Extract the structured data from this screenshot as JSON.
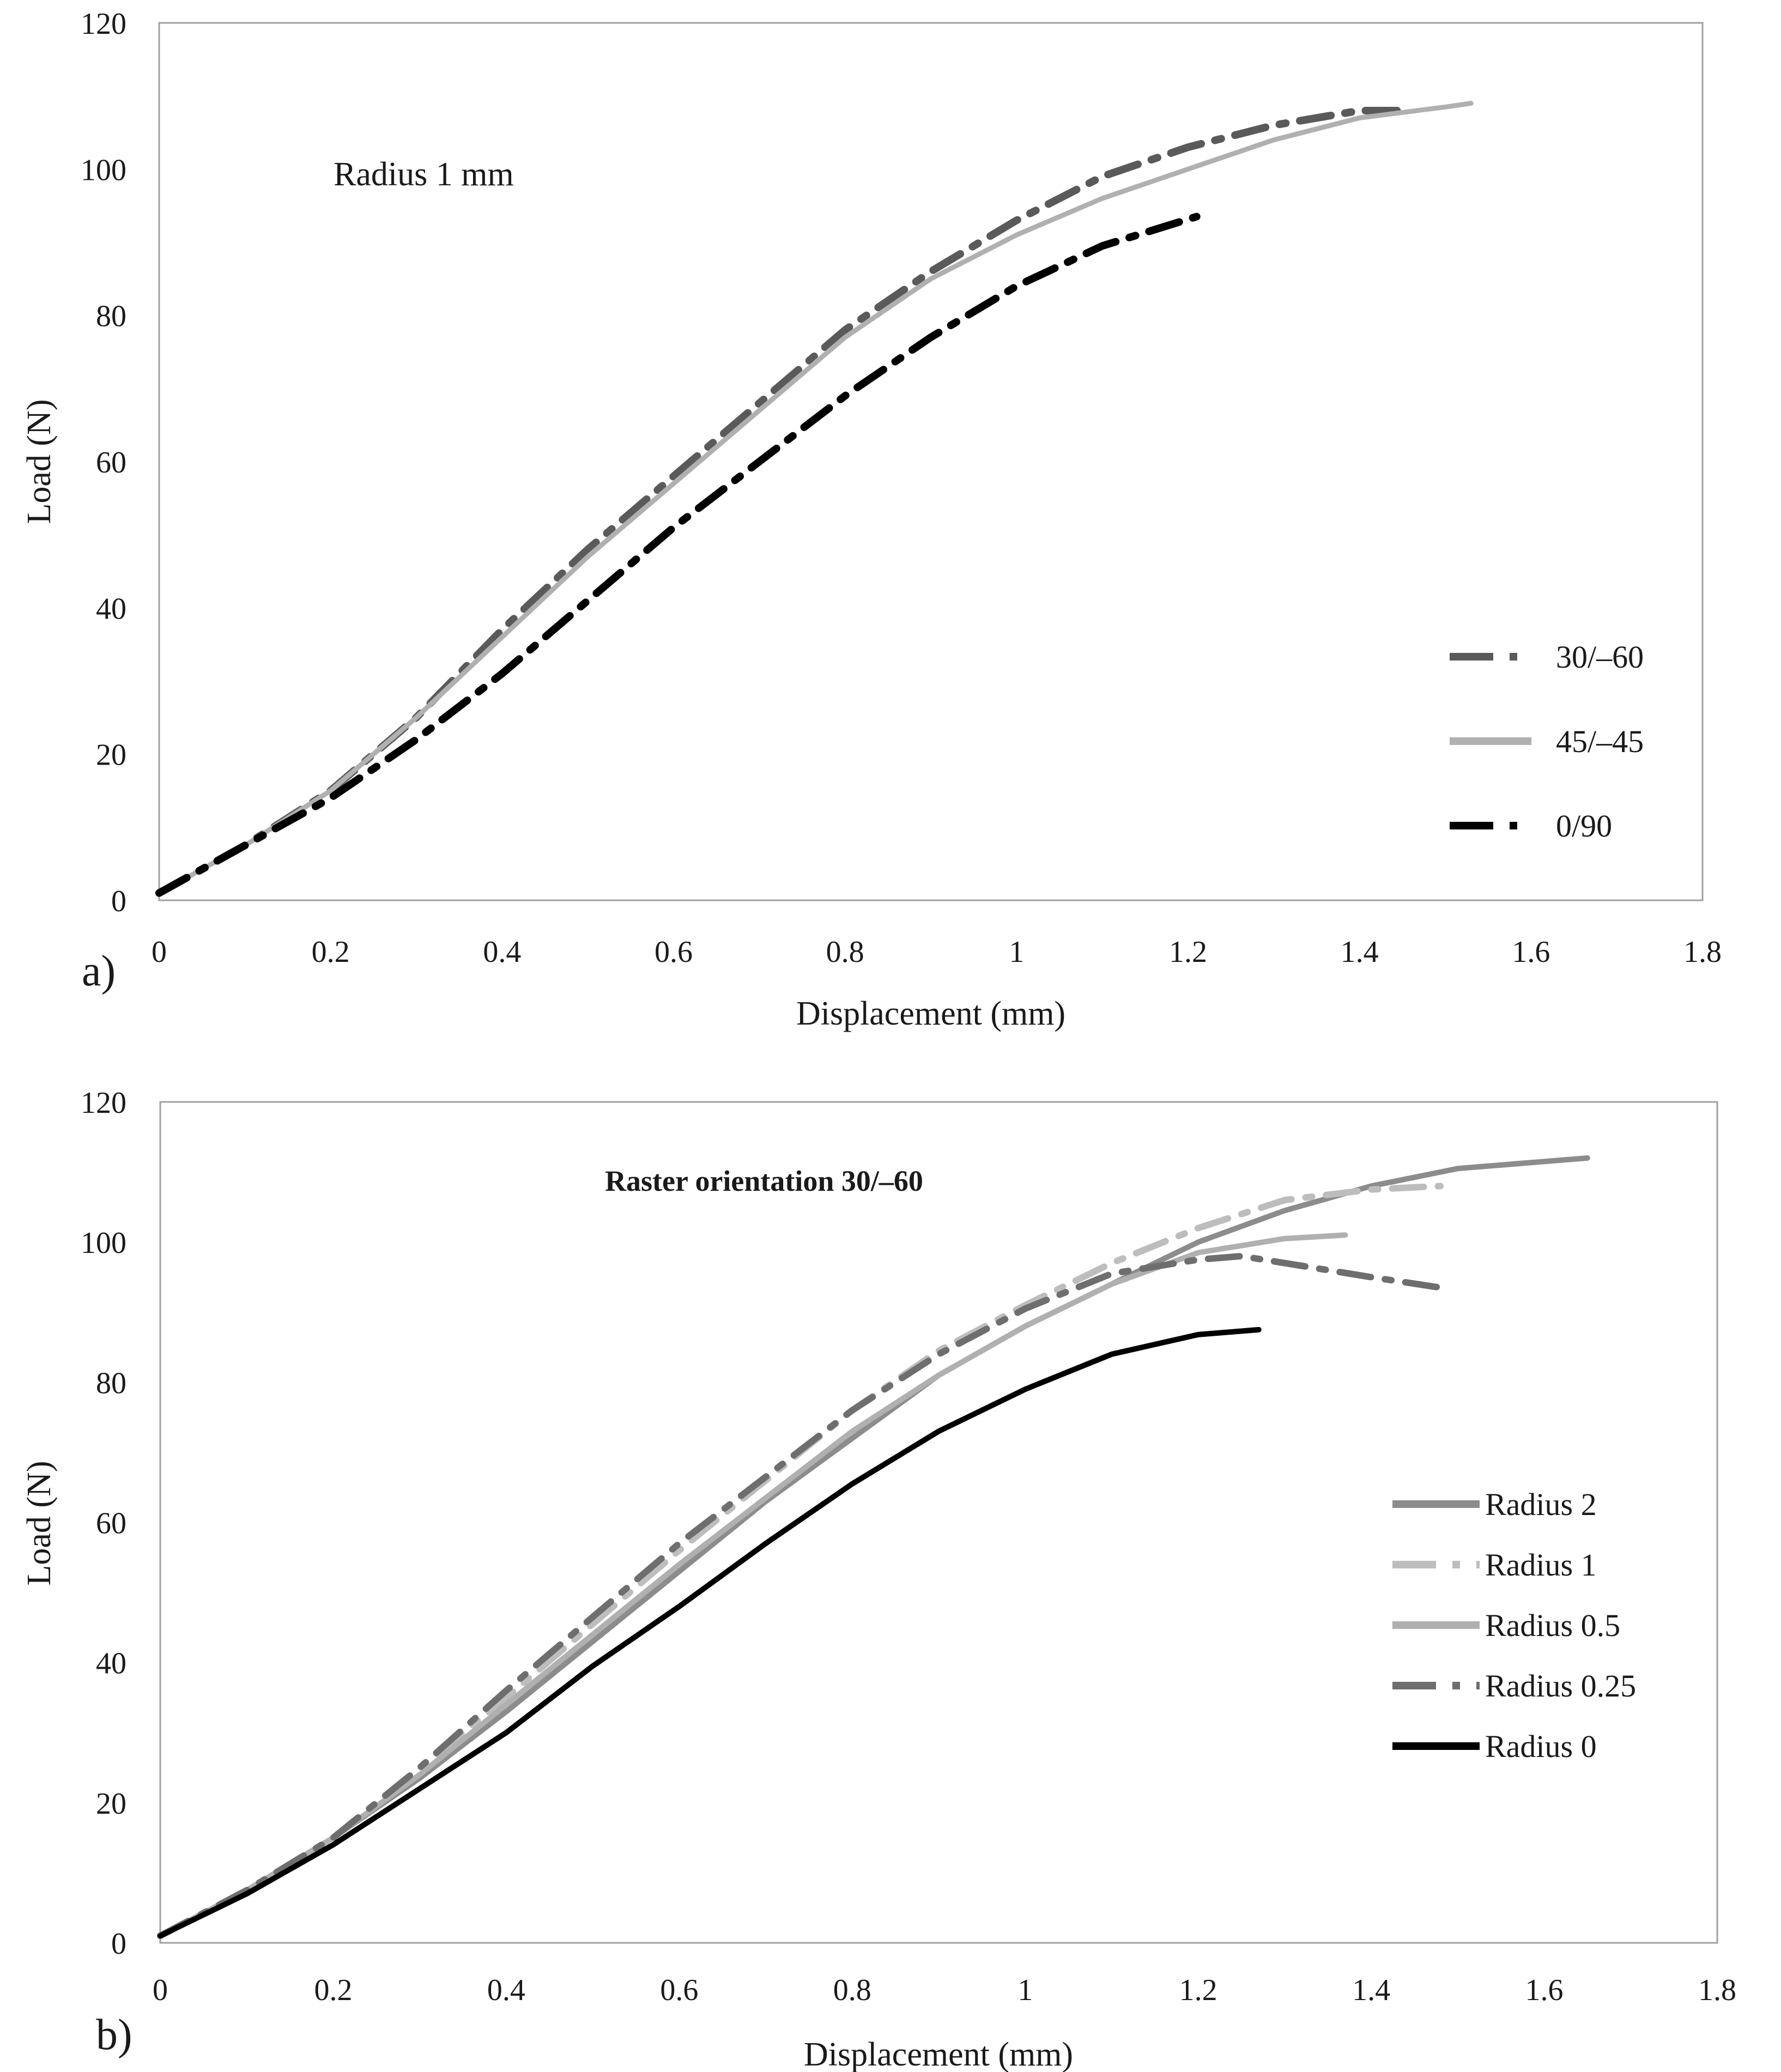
{
  "chart_data": [
    {
      "type": "line",
      "panel_label": "a)",
      "annotation": "Radius 1 mm",
      "xlabel": "Displacement (mm)",
      "ylabel": "Load (N)",
      "xlim": [
        0,
        1.8
      ],
      "ylim": [
        0,
        120
      ],
      "x_ticks": [
        "0",
        "0.2",
        "0.4",
        "0.6",
        "0.8",
        "1",
        "1.2",
        "1.4",
        "1.6",
        "1.8"
      ],
      "y_ticks": [
        "0",
        "20",
        "40",
        "60",
        "80",
        "100",
        "120"
      ],
      "grid": false,
      "legend_position": "right",
      "series": [
        {
          "name": "30/–60",
          "color": "#5a5a5a",
          "style": "dashdot",
          "x": [
            0,
            0.1,
            0.2,
            0.3,
            0.4,
            0.5,
            0.6,
            0.7,
            0.8,
            0.9,
            1.0,
            1.1,
            1.2,
            1.3,
            1.4,
            1.46
          ],
          "y": [
            1,
            7.5,
            15,
            25,
            37,
            48,
            58,
            68,
            78,
            86,
            93,
            99,
            103,
            106,
            108,
            108
          ]
        },
        {
          "name": "45/–45",
          "color": "#b0b0b0",
          "style": "solid",
          "x": [
            0,
            0.1,
            0.2,
            0.3,
            0.4,
            0.5,
            0.6,
            0.7,
            0.8,
            0.9,
            1.0,
            1.1,
            1.2,
            1.3,
            1.4,
            1.5,
            1.53
          ],
          "y": [
            1,
            7.5,
            15,
            25,
            36,
            47,
            57,
            67,
            77,
            85,
            91,
            96,
            100,
            104,
            107,
            108.5,
            109
          ]
        },
        {
          "name": "0/90",
          "color": "#000000",
          "style": "dashdot",
          "x": [
            0,
            0.1,
            0.2,
            0.3,
            0.4,
            0.5,
            0.6,
            0.7,
            0.8,
            0.9,
            1.0,
            1.1,
            1.21
          ],
          "y": [
            1,
            7.5,
            14,
            22,
            31,
            41,
            51,
            60,
            69,
            77,
            84,
            89.5,
            93.5
          ]
        }
      ]
    },
    {
      "type": "line",
      "panel_label": "b)",
      "annotation": "Raster orientation 30/–60",
      "xlabel": "Displacement (mm)",
      "ylabel": "Load (N)",
      "xlim": [
        0,
        1.8
      ],
      "ylim": [
        0,
        120
      ],
      "x_ticks": [
        "0",
        "0.2",
        "0.4",
        "0.6",
        "0.8",
        "1",
        "1.2",
        "1.4",
        "1.6",
        "1.8"
      ],
      "y_ticks": [
        "0",
        "20",
        "40",
        "60",
        "80",
        "100",
        "120"
      ],
      "grid": false,
      "legend_position": "right",
      "series": [
        {
          "name": "Radius 2",
          "color": "#8c8c8c",
          "style": "solid",
          "x": [
            0,
            0.1,
            0.2,
            0.3,
            0.4,
            0.5,
            0.6,
            0.7,
            0.8,
            0.9,
            1.0,
            1.1,
            1.2,
            1.3,
            1.4,
            1.5,
            1.6,
            1.65
          ],
          "y": [
            1,
            7.5,
            15,
            23.5,
            33,
            43,
            53,
            63,
            72,
            81,
            88,
            94,
            100,
            104.5,
            108,
            110.5,
            111.5,
            112
          ]
        },
        {
          "name": "Radius 1",
          "color": "#bdbdbd",
          "style": "dashdot",
          "x": [
            0,
            0.1,
            0.2,
            0.3,
            0.4,
            0.5,
            0.6,
            0.7,
            0.8,
            0.9,
            1.0,
            1.1,
            1.2,
            1.3,
            1.4,
            1.48
          ],
          "y": [
            1,
            7.5,
            15,
            25,
            35,
            45.5,
            56,
            66,
            76,
            84.5,
            91,
            97,
            102,
            106,
            107.5,
            108
          ]
        },
        {
          "name": "Radius 0.5",
          "color": "#b0b0b0",
          "style": "solid",
          "x": [
            0,
            0.1,
            0.2,
            0.3,
            0.4,
            0.5,
            0.6,
            0.7,
            0.8,
            0.9,
            1.0,
            1.1,
            1.2,
            1.3,
            1.37
          ],
          "y": [
            1,
            7.5,
            15,
            24,
            34,
            44,
            54,
            63.5,
            73,
            81,
            88,
            94,
            98.5,
            100.5,
            101
          ]
        },
        {
          "name": "Radius 0.25",
          "color": "#6e6e6e",
          "style": "dashdot",
          "x": [
            0,
            0.1,
            0.2,
            0.3,
            0.4,
            0.5,
            0.6,
            0.7,
            0.8,
            0.9,
            1.0,
            1.1,
            1.2,
            1.25,
            1.3,
            1.4,
            1.48
          ],
          "y": [
            1,
            7.5,
            15,
            25,
            36,
            46.5,
            57,
            66.5,
            76,
            84,
            90.5,
            95.5,
            97.5,
            98,
            97,
            95,
            93.5
          ]
        },
        {
          "name": "Radius 0",
          "color": "#000000",
          "style": "solid",
          "x": [
            0,
            0.1,
            0.2,
            0.3,
            0.4,
            0.5,
            0.6,
            0.7,
            0.8,
            0.9,
            1.0,
            1.1,
            1.2,
            1.27
          ],
          "y": [
            1,
            7,
            14,
            22,
            30,
            39.5,
            48,
            57,
            65.5,
            73,
            79,
            84,
            86.8,
            87.5
          ]
        }
      ]
    }
  ]
}
